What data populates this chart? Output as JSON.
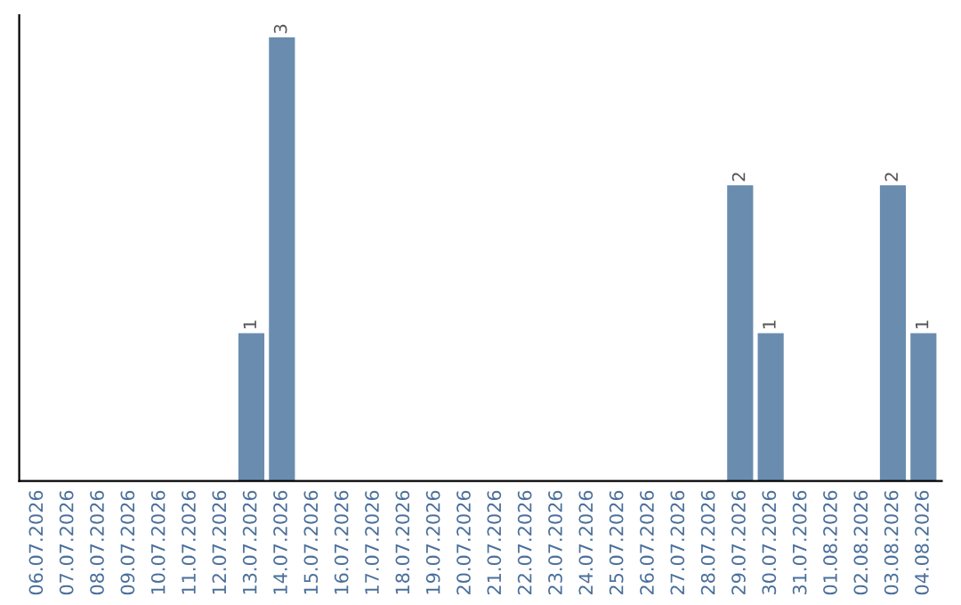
{
  "chart_data": {
    "type": "bar",
    "categories": [
      "06.07.2026",
      "07.07.2026",
      "08.07.2026",
      "09.07.2026",
      "10.07.2026",
      "11.07.2026",
      "12.07.2026",
      "13.07.2026",
      "14.07.2026",
      "15.07.2026",
      "16.07.2026",
      "17.07.2026",
      "18.07.2026",
      "19.07.2026",
      "20.07.2026",
      "21.07.2026",
      "22.07.2026",
      "23.07.2026",
      "24.07.2026",
      "25.07.2026",
      "26.07.2026",
      "27.07.2026",
      "28.07.2026",
      "29.07.2026",
      "30.07.2026",
      "31.07.2026",
      "01.08.2026",
      "02.08.2026",
      "03.08.2026",
      "04.08.2026"
    ],
    "values": [
      null,
      null,
      null,
      null,
      null,
      null,
      null,
      1,
      3,
      null,
      null,
      null,
      null,
      null,
      null,
      null,
      null,
      null,
      null,
      null,
      null,
      null,
      null,
      2,
      1,
      null,
      null,
      null,
      2,
      1
    ],
    "color": "#6a8caf",
    "data_labels": true,
    "grid": false,
    "legend": false
  }
}
